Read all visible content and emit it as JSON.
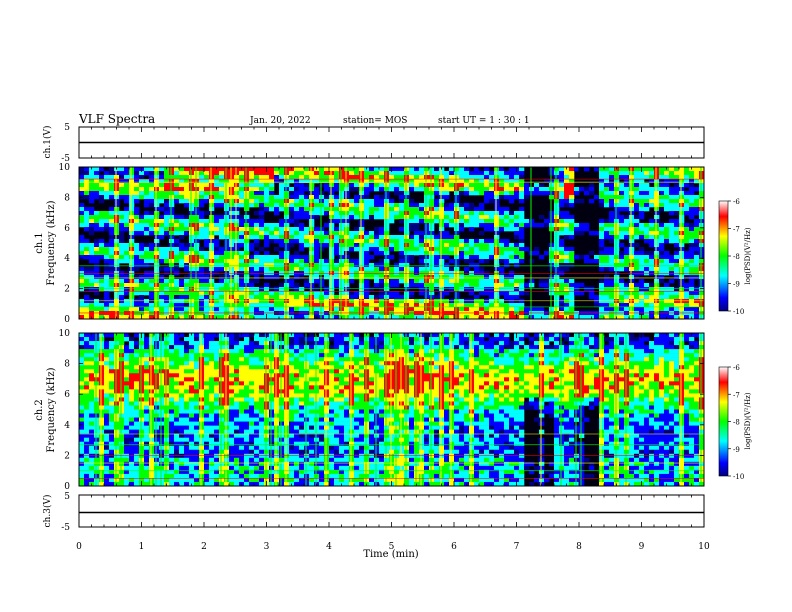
{
  "header": {
    "title": "VLF Spectra",
    "date": "Jan. 20, 2022",
    "station": "station= MOS",
    "start_ut": "start  UT =   1 : 30 : 1"
  },
  "chart_data": [
    {
      "id": "ch1-waveform",
      "type": "line",
      "ylabel": "ch.1(V)",
      "ylim": [
        -5,
        5
      ],
      "yticks": [
        "5",
        "-5"
      ],
      "xlim": [
        0,
        10
      ]
    },
    {
      "id": "ch1-spectrogram",
      "type": "heatmap",
      "ylabel_top": "ch.1",
      "ylabel": "Frequency (kHz)",
      "ylim": [
        0,
        10
      ],
      "yticks": [
        "0",
        "2",
        "4",
        "6",
        "8",
        "10"
      ],
      "xlim": [
        0,
        10
      ],
      "colorbar": {
        "label": "log(PSD)(V²/Hz)",
        "range": [
          -10,
          -6
        ],
        "ticks": [
          "-6",
          "-7",
          "-8",
          "-9",
          "-10"
        ],
        "colors": [
          "#000080",
          "#0000ff",
          "#00ffff",
          "#00ff00",
          "#ffff00",
          "#ff0000",
          "#ffffff"
        ]
      }
    },
    {
      "id": "ch2-spectrogram",
      "type": "heatmap",
      "ylabel_top": "ch.2",
      "ylabel": "Frequency (kHz)",
      "ylim": [
        0,
        10
      ],
      "yticks": [
        "0",
        "2",
        "4",
        "6",
        "8",
        "10"
      ],
      "xlim": [
        0,
        10
      ],
      "colorbar": {
        "label": "log(PSD)(V²/Hz)",
        "range": [
          -10,
          -6
        ],
        "ticks": [
          "-6",
          "-7",
          "-8",
          "-9",
          "-10"
        ],
        "colors": [
          "#000080",
          "#0000ff",
          "#00ffff",
          "#00ff00",
          "#ffff00",
          "#ff0000",
          "#ffffff"
        ]
      }
    },
    {
      "id": "ch3-waveform",
      "type": "line",
      "ylabel": "ch.3(V)",
      "ylim": [
        -5,
        5
      ],
      "yticks": [
        "5",
        "-5"
      ],
      "xlim": [
        0,
        10
      ],
      "xlabel": "Time (min)",
      "xticks": [
        "0",
        "1",
        "2",
        "3",
        "4",
        "5",
        "6",
        "7",
        "8",
        "9",
        "10"
      ]
    }
  ]
}
